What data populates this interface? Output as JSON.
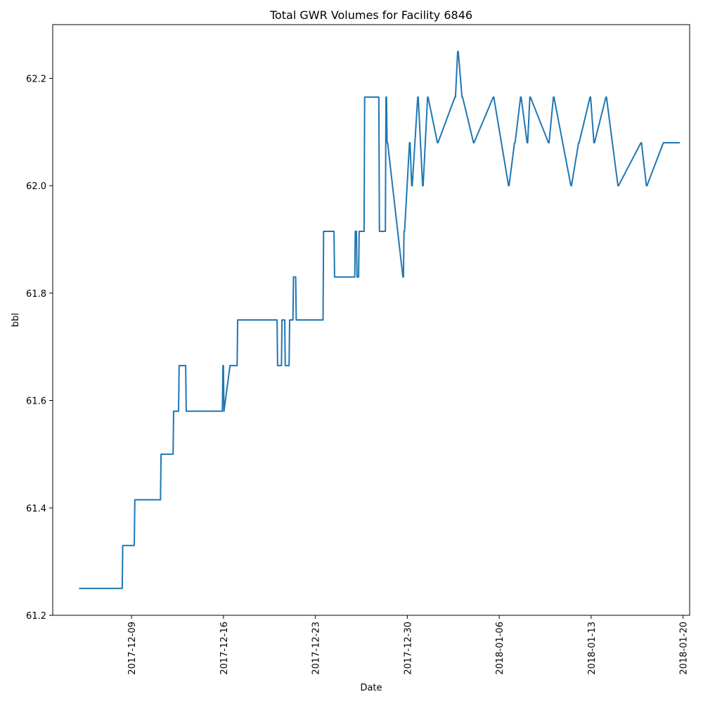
{
  "chart_data": {
    "type": "line",
    "title": "Total GWR Volumes for Facility 6846",
    "xlabel": "Date",
    "ylabel": "bbl",
    "x_type": "date",
    "xlim": [
      "2017-12-03",
      "2018-01-20 12:00"
    ],
    "ylim": [
      61.2,
      62.3
    ],
    "grid": false,
    "x_tick_labels": [
      "2017-12-09",
      "2017-12-16",
      "2017-12-23",
      "2017-12-30",
      "2018-01-06",
      "2018-01-13",
      "2018-01-20"
    ],
    "y_tick_labels": [
      "61.2",
      "61.4",
      "61.6",
      "61.8",
      "62.0",
      "62.2"
    ],
    "line_color": "#1f77b4",
    "series": [
      {
        "x": [
          "2017-12-05 00:00",
          "2017-12-08 07:00",
          "2017-12-08 08:00",
          "2017-12-09 05:00",
          "2017-12-09 06:00",
          "2017-12-11 05:00",
          "2017-12-11 06:00",
          "2017-12-12 04:00",
          "2017-12-12 05:00",
          "2017-12-12 14:00",
          "2017-12-12 15:00",
          "2017-12-13 03:00",
          "2017-12-13 04:00",
          "2017-12-15 22:00",
          "2017-12-15 23:00",
          "2017-12-16 00:00",
          "2017-12-16 01:00",
          "2017-12-16 12:00",
          "2017-12-17 01:00",
          "2017-12-17 02:00",
          "2017-12-20 02:00",
          "2017-12-20 03:00",
          "2017-12-20 10:00",
          "2017-12-20 11:00",
          "2017-12-20 16:00",
          "2017-12-20 17:00",
          "2017-12-21 00:00",
          "2017-12-21 01:00",
          "2017-12-21 07:00",
          "2017-12-21 08:00",
          "2017-12-21 12:00",
          "2017-12-21 13:00",
          "2017-12-23 14:00",
          "2017-12-23 15:00",
          "2017-12-24 10:00",
          "2017-12-24 11:00",
          "2017-12-26 00:00",
          "2017-12-26 01:00",
          "2017-12-26 03:00",
          "2017-12-26 04:00",
          "2017-12-26 07:00",
          "2017-12-26 08:00",
          "2017-12-26 17:00",
          "2017-12-26 18:00",
          "2017-12-27 20:00",
          "2017-12-27 21:00",
          "2017-12-28 08:00",
          "2017-12-28 09:00",
          "2017-12-28 10:00",
          "2017-12-28 11:00",
          "2017-12-28 12:00",
          "2017-12-29 16:00",
          "2017-12-29 17:00",
          "2017-12-29 18:00",
          "2017-12-29 19:00",
          "2017-12-30 04:00",
          "2017-12-30 05:00",
          "2017-12-30 08:00",
          "2017-12-30 09:00",
          "2017-12-30 19:00",
          "2017-12-30 20:00",
          "2017-12-31 04:00",
          "2017-12-31 05:00",
          "2017-12-31 13:00",
          "2017-12-31 14:00",
          "2018-01-01 07:00",
          "2018-01-01 08:00",
          "2018-01-02 15:00",
          "2018-01-02 16:00",
          "2018-01-02 20:00",
          "2018-01-02 21:00",
          "2018-01-03 04:00",
          "2018-01-03 05:00",
          "2018-01-04 01:00",
          "2018-01-04 02:00",
          "2018-01-05 13:00",
          "2018-01-05 14:00",
          "2018-01-06 17:00",
          "2018-01-06 18:00",
          "2018-01-07 04:00",
          "2018-01-07 05:00",
          "2018-01-07 15:00",
          "2018-01-07 16:00",
          "2018-01-08 03:00",
          "2018-01-08 04:00",
          "2018-01-08 08:00",
          "2018-01-08 09:00",
          "2018-01-09 18:00",
          "2018-01-09 19:00",
          "2018-01-10 03:00",
          "2018-01-10 04:00",
          "2018-01-11 11:00",
          "2018-01-11 12:00",
          "2018-01-12 01:00",
          "2018-01-12 02:00",
          "2018-01-12 22:00",
          "2018-01-12 23:00",
          "2018-01-13 05:00",
          "2018-01-13 06:00",
          "2018-01-14 03:00",
          "2018-01-14 04:00",
          "2018-01-15 01:00",
          "2018-01-15 02:00",
          "2018-01-16 19:00",
          "2018-01-16 20:00",
          "2018-01-17 05:00",
          "2018-01-17 06:00",
          "2018-01-18 12:00",
          "2018-01-19 18:00"
        ],
        "y": [
          61.25,
          61.25,
          61.33,
          61.33,
          61.415,
          61.415,
          61.5,
          61.5,
          61.58,
          61.58,
          61.665,
          61.665,
          61.58,
          61.58,
          61.665,
          61.665,
          61.58,
          61.665,
          61.665,
          61.75,
          61.75,
          61.665,
          61.665,
          61.75,
          61.75,
          61.665,
          61.665,
          61.75,
          61.75,
          61.83,
          61.83,
          61.75,
          61.75,
          61.915,
          61.915,
          61.83,
          61.83,
          61.915,
          61.915,
          61.83,
          61.83,
          61.915,
          61.915,
          62.165,
          62.165,
          61.915,
          61.915,
          62.165,
          62.165,
          62.08,
          62.08,
          61.83,
          61.83,
          61.915,
          61.915,
          62.08,
          62.08,
          62.0,
          62.0,
          62.165,
          62.165,
          62.0,
          62.0,
          62.165,
          62.165,
          62.08,
          62.08,
          62.165,
          62.165,
          62.25,
          62.25,
          62.165,
          62.165,
          62.08,
          62.08,
          62.165,
          62.165,
          62.0,
          62.0,
          62.08,
          62.08,
          62.165,
          62.165,
          62.08,
          62.08,
          62.165,
          62.165,
          62.08,
          62.08,
          62.165,
          62.165,
          62.0,
          62.0,
          62.08,
          62.08,
          62.165,
          62.165,
          62.08,
          62.08,
          62.165,
          62.165,
          62.0,
          62.0,
          62.08,
          62.08,
          62.0,
          62.0,
          62.08,
          62.08
        ]
      }
    ]
  }
}
